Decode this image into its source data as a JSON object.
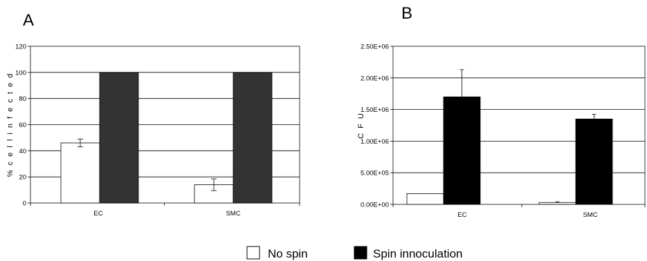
{
  "legend": {
    "items": [
      {
        "label": "No spin",
        "color": "#ffffff"
      },
      {
        "label": "Spin innoculation",
        "color": "#000000"
      }
    ]
  },
  "chart_data": [
    {
      "panel": "A",
      "type": "bar",
      "categories": [
        "EC",
        "SMC"
      ],
      "ylabel": "% c e l l  i n f e c t e d",
      "ylim": [
        0,
        120
      ],
      "yticks": [
        0,
        20,
        40,
        60,
        80,
        100,
        120
      ],
      "ytick_labels": [
        "0",
        "20",
        "40",
        "60",
        "80",
        "100",
        "120"
      ],
      "grid": true,
      "legend_position": "bottom-center",
      "series": [
        {
          "name": "No spin",
          "color": "#ffffff",
          "values": [
            46,
            14
          ],
          "errors": [
            3,
            4.5
          ]
        },
        {
          "name": "Spin innoculation",
          "color": "#333333",
          "values": [
            100,
            100
          ],
          "errors": [
            0,
            0
          ]
        }
      ]
    },
    {
      "panel": "B",
      "type": "bar",
      "categories": [
        "EC",
        "SMC"
      ],
      "ylabel": "C F U",
      "ylim": [
        0,
        2500000
      ],
      "yticks": [
        0,
        500000,
        1000000,
        1500000,
        2000000,
        2500000
      ],
      "ytick_labels": [
        "0.00E+00",
        "5.00E+05",
        "1.00E+06",
        "1.50E+06",
        "2.00E+06",
        "2.50E+06"
      ],
      "grid": true,
      "legend_position": "bottom-center",
      "series": [
        {
          "name": "No spin",
          "color": "#ffffff",
          "values": [
            170000,
            30000
          ],
          "errors": [
            0,
            12000
          ]
        },
        {
          "name": "Spin innoculation",
          "color": "#000000",
          "values": [
            1700000,
            1350000
          ],
          "errors": [
            430000,
            75000
          ]
        }
      ]
    }
  ]
}
